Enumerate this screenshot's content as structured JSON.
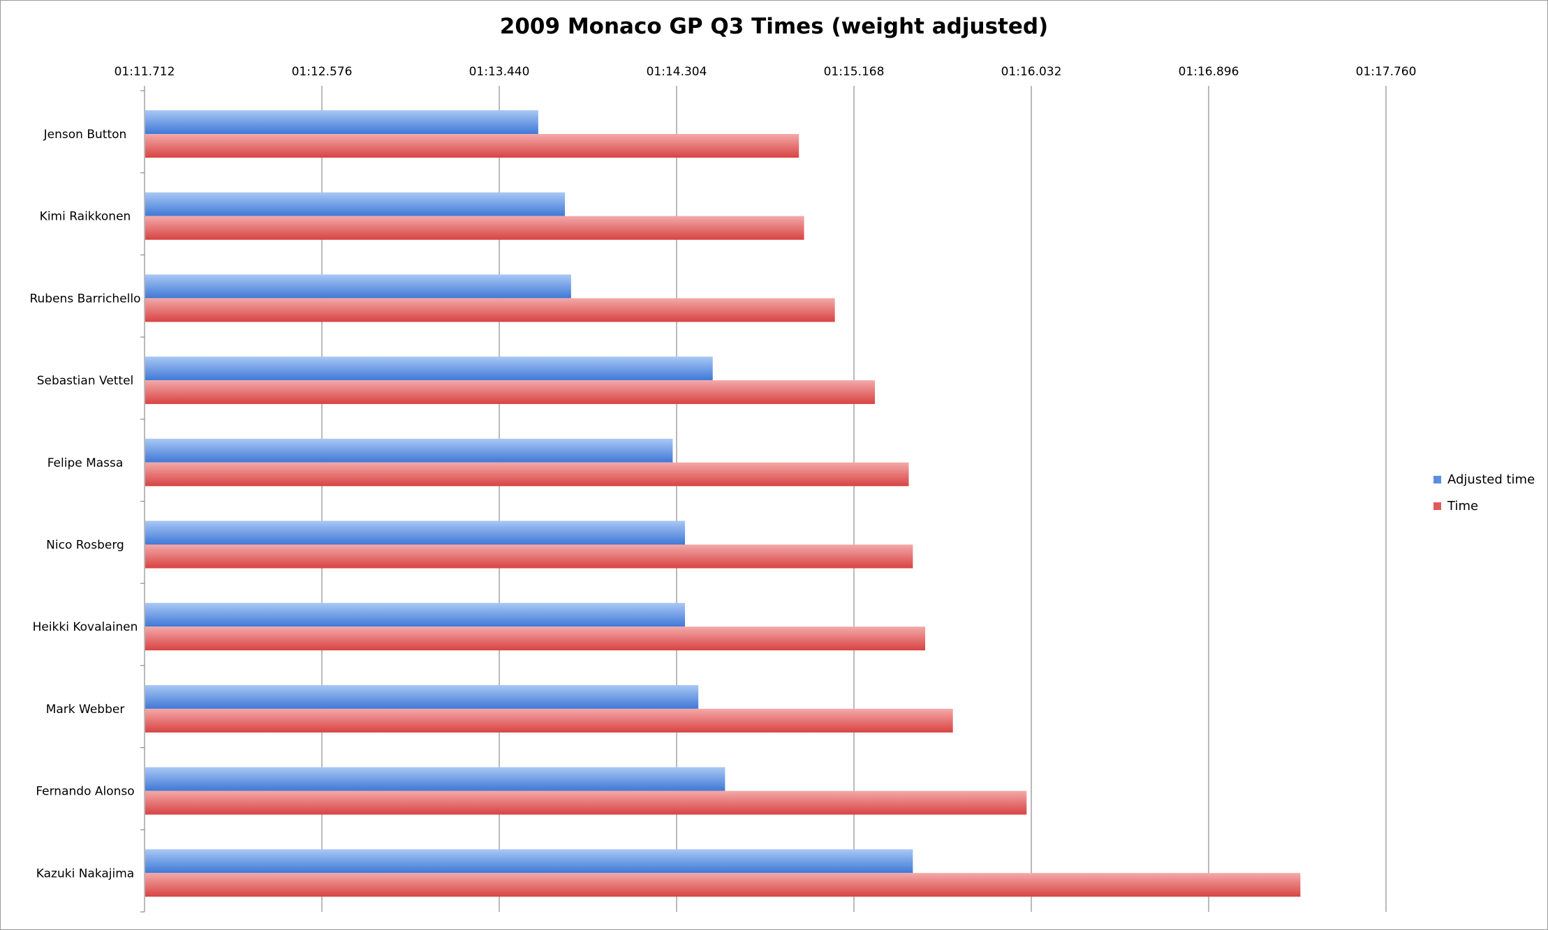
{
  "chart_data": {
    "type": "bar",
    "orientation": "horizontal",
    "title": "2009 Monaco GP Q3 Times (weight adjusted)",
    "xlabel": "",
    "ylabel": "",
    "x_axis_position": "top",
    "xlim": [
      71.712,
      77.76
    ],
    "tick_values": [
      71.712,
      72.576,
      73.44,
      74.304,
      75.168,
      76.032,
      76.896,
      77.76
    ],
    "tick_labels": [
      "01:11.712",
      "01:12.576",
      "01:13.440",
      "01:14.304",
      "01:15.168",
      "01:16.032",
      "01:16.896",
      "01:17.760"
    ],
    "grid": "vertical",
    "legend_position": "right",
    "categories": [
      "Jenson Button",
      "Kimi Raikkonen",
      "Rubens Barrichello",
      "Sebastian Vettel",
      "Felipe Massa",
      "Nico Rosberg",
      "Heikki Kovalainen",
      "Mark Webber",
      "Fernando Alonso",
      "Kazuki Nakajima"
    ],
    "series": [
      {
        "name": "Adjusted time",
        "color": "#5a8fe0",
        "values": [
          73.63,
          73.76,
          73.79,
          74.48,
          74.285,
          74.345,
          74.345,
          74.41,
          74.54,
          75.455
        ]
      },
      {
        "name": "Time",
        "color": "#e05a5a",
        "values": [
          74.9,
          74.925,
          75.075,
          75.27,
          75.435,
          75.455,
          75.515,
          75.65,
          76.009,
          77.343
        ]
      }
    ]
  }
}
